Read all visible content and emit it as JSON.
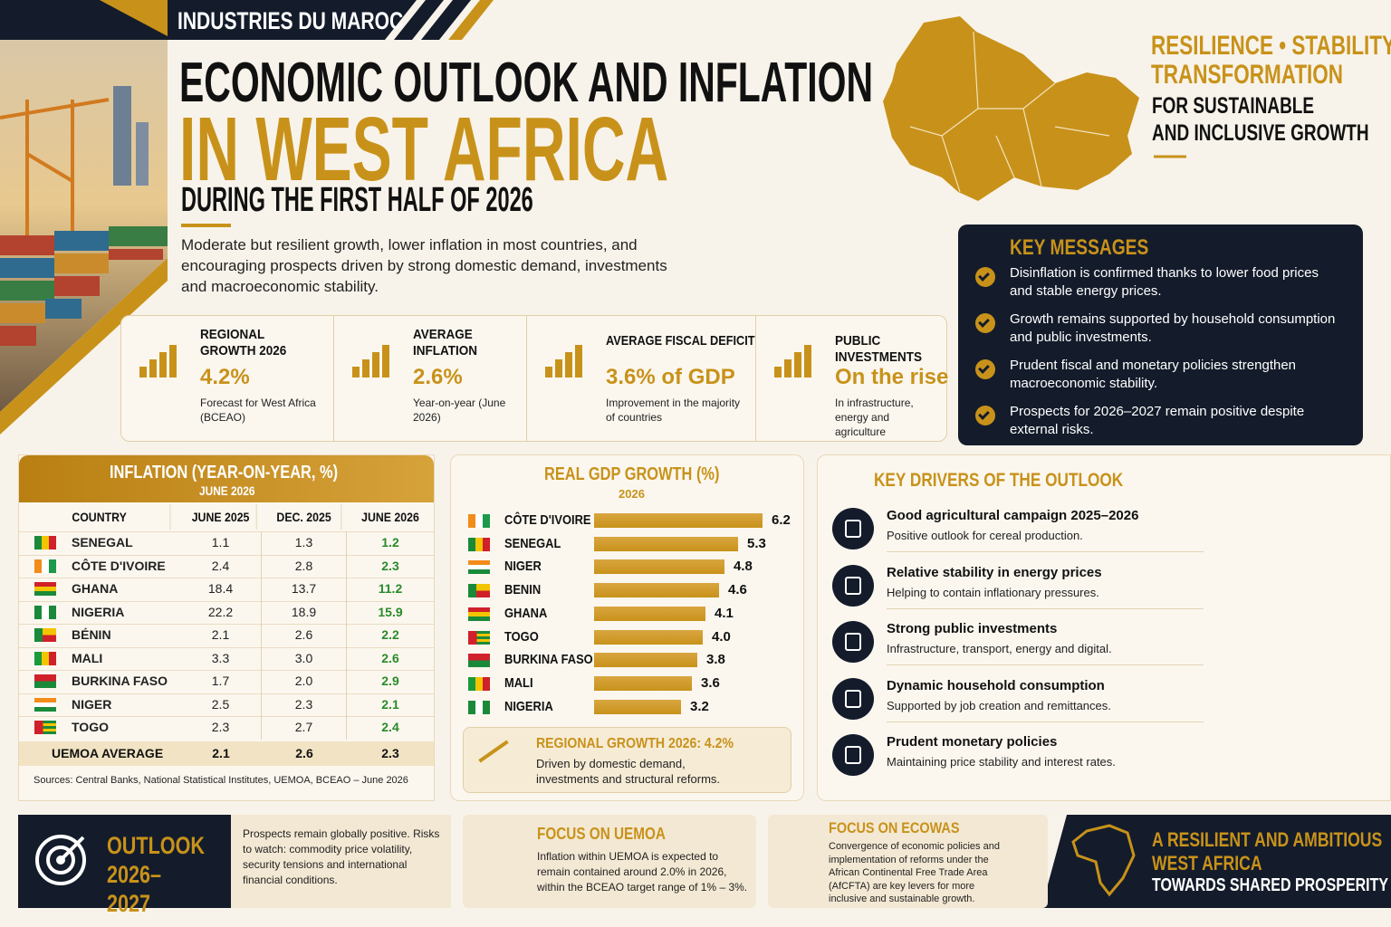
{
  "header": {
    "brand": "INDUSTRIES DU MAROC",
    "title_line1": "ECONOMIC OUTLOOK AND INFLATION",
    "title_line2": "IN WEST AFRICA",
    "subtitle": "DURING THE FIRST HALF OF 2026",
    "intro": "Moderate but resilient growth, lower inflation in most countries, and encouraging prospects driven by strong domestic demand, investments and macroeconomic stability."
  },
  "tagline": {
    "line1": "RESILIENCE • STABILITY",
    "line2": "TRANSFORMATION",
    "line3": "FOR SUSTAINABLE",
    "line4": "AND INCLUSIVE GROWTH"
  },
  "kpis": [
    {
      "label": "REGIONAL GROWTH 2026",
      "value": "4.2%",
      "note": "Forecast for West Africa (BCEAO)"
    },
    {
      "label": "AVERAGE INFLATION",
      "value": "2.6%",
      "note": "Year-on-year (June 2026)"
    },
    {
      "label": "AVERAGE FISCAL DEFICIT",
      "value": "3.6% of GDP",
      "note": "Improvement in the majority of countries"
    },
    {
      "label": "PUBLIC INVESTMENTS",
      "value": "On the rise",
      "note": "In infrastructure, energy and agriculture"
    }
  ],
  "key_messages": {
    "title": "KEY MESSAGES",
    "items": [
      "Disinflation is confirmed thanks to lower food prices and stable energy prices.",
      "Growth remains supported by household consumption and public investments.",
      "Prudent fiscal and monetary policies strengthen macroeconomic stability.",
      "Prospects for 2026–2027 remain positive despite external risks."
    ]
  },
  "inflation_table": {
    "title": "INFLATION (YEAR-ON-YEAR, %)",
    "subtitle": "JUNE 2026",
    "columns": [
      "COUNTRY",
      "JUNE 2025",
      "DEC. 2025",
      "JUNE 2026"
    ],
    "rows": [
      [
        "SENEGAL",
        "1.1",
        "1.3",
        "1.2"
      ],
      [
        "CÔTE D'IVOIRE",
        "2.4",
        "2.8",
        "2.3"
      ],
      [
        "GHANA",
        "18.4",
        "13.7",
        "11.2"
      ],
      [
        "NIGERIA",
        "22.2",
        "18.9",
        "15.9"
      ],
      [
        "BÉNIN",
        "2.1",
        "2.6",
        "2.2"
      ],
      [
        "MALI",
        "3.3",
        "3.0",
        "2.6"
      ],
      [
        "BURKINA FASO",
        "1.7",
        "2.0",
        "2.9"
      ],
      [
        "NIGER",
        "2.5",
        "2.3",
        "2.1"
      ],
      [
        "TOGO",
        "2.3",
        "2.7",
        "2.4"
      ]
    ],
    "average": [
      "UEMOA AVERAGE",
      "2.1",
      "2.6",
      "2.3"
    ],
    "source": "Sources: Central Banks, National Statistical Institutes, UEMOA, BCEAO – June 2026"
  },
  "chart_data": {
    "type": "bar",
    "title": "REAL GDP GROWTH (%)",
    "subtitle": "2026",
    "categories": [
      "CÔTE D'IVOIRE",
      "SENEGAL",
      "NIGER",
      "BENIN",
      "GHANA",
      "TOGO",
      "BURKINA FASO",
      "MALI",
      "NIGERIA"
    ],
    "values": [
      6.2,
      5.3,
      4.8,
      4.6,
      4.1,
      4.0,
      3.8,
      3.6,
      3.2
    ],
    "value_labels": [
      "6.2",
      "5.3",
      "4.8",
      "4.6",
      "4.1",
      "4.0",
      "3.8",
      "3.6",
      "3.2"
    ],
    "color": "#c8921a"
  },
  "growth_note": {
    "title": "REGIONAL GROWTH 2026: 4.2%",
    "text": "Driven by domestic demand, investments and structural reforms."
  },
  "drivers": {
    "title": "KEY DRIVERS OF THE OUTLOOK",
    "items": [
      {
        "title": "Good agricultural campaign 2025–2026",
        "text": "Positive outlook for cereal production."
      },
      {
        "title": "Relative stability in energy prices",
        "text": "Helping to contain inflationary pressures."
      },
      {
        "title": "Strong public investments",
        "text": "Infrastructure, transport, energy and digital."
      },
      {
        "title": "Dynamic household consumption",
        "text": "Supported by job creation and remittances."
      },
      {
        "title": "Prudent monetary policies",
        "text": "Maintaining price stability and interest rates."
      }
    ]
  },
  "outlook": {
    "title": "OUTLOOK 2026–2027",
    "text": "Prospects remain globally positive. Risks to watch: commodity price volatility, security tensions and international financial conditions."
  },
  "focus_uemoa": {
    "title": "FOCUS ON UEMOA",
    "text": "Inflation within UEMOA is expected to remain contained around 2.0% in 2026, within the BCEAO target range of 1% – 3%."
  },
  "focus_ecowas": {
    "title": "FOCUS ON ECOWAS",
    "text": "Convergence of economic policies and implementation of reforms under the African Continental Free Trade Area (AfCFTA) are key levers for more inclusive and sustainable growth."
  },
  "closing": {
    "line1": "A RESILIENT AND AMBITIOUS",
    "line2": "WEST AFRICA",
    "line3": "TOWARDS SHARED PROSPERITY"
  }
}
